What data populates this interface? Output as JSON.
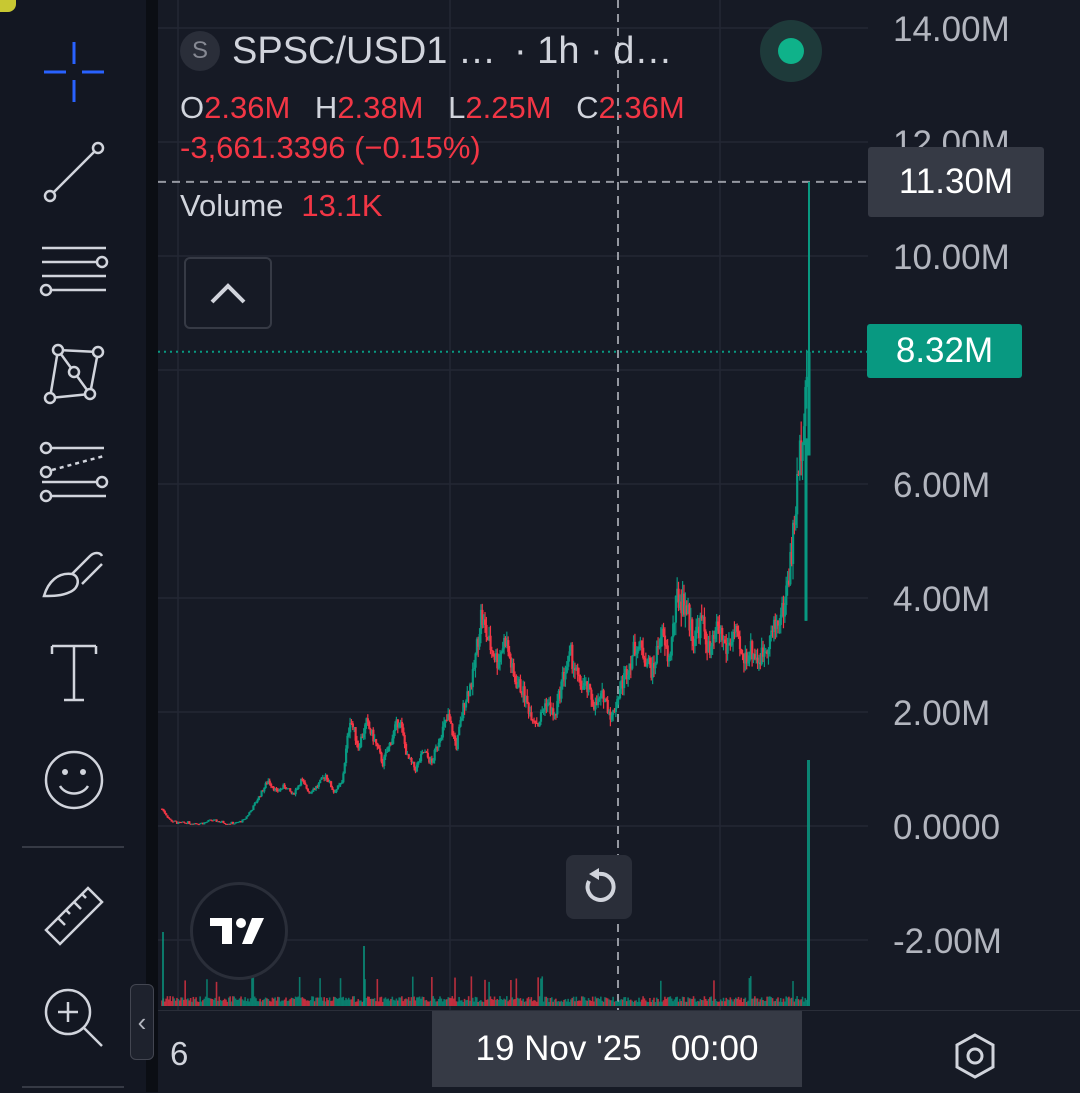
{
  "legend": {
    "symbol_icon_letter": "S",
    "symbol": "SPSC/USD1 …",
    "interval": " · 1h · d…",
    "open_key": "O",
    "open": "2.36M",
    "high_key": "H",
    "high": "2.38M",
    "low_key": "L",
    "low": "2.25M",
    "close_key": "C",
    "close": "2.36M",
    "change": "-3,661.3396 (−0.15%)",
    "volume_label": "Volume",
    "volume_value": "13.1K"
  },
  "price_axis": {
    "labels": [
      "14.00M",
      "12.00M",
      "10.00M",
      "6.00M",
      "4.00M",
      "2.00M",
      "0.0000",
      "-2.00M"
    ],
    "crosshair_price": "11.30M",
    "last_price": "8.32M"
  },
  "time_axis": {
    "left_label": "6",
    "crosshair_time": "19 Nov '25   00:00"
  },
  "toolbar": {
    "tools": [
      "crosshair-icon",
      "trend-line-icon",
      "horizontal-lines-icon",
      "pattern-icon",
      "fib-icon",
      "brush-icon",
      "text-icon",
      "emoji-icon",
      "ruler-icon",
      "zoom-in-icon"
    ]
  },
  "colors": {
    "up": "#089981",
    "down": "#f23645",
    "background": "#161a25",
    "grid": "#232734"
  },
  "chart_data": {
    "type": "candlestick",
    "ylim": [
      -2.4,
      14.4
    ],
    "y_ticks": [
      -2,
      0,
      2,
      4,
      6,
      8,
      10,
      12,
      14
    ],
    "unit": "M",
    "series": [
      {
        "values": [
          0.3,
          0.1,
          0.05,
          0.06,
          0.05,
          0.05,
          0.1,
          0.08,
          0.05,
          0.05,
          0.1,
          0.3,
          0.55,
          0.8,
          0.6,
          0.7,
          0.55,
          0.8,
          0.6,
          0.7,
          0.9,
          0.6,
          0.75,
          1.9,
          1.4,
          1.8,
          1.5,
          1.1,
          1.5,
          1.9,
          1.2,
          1.0,
          1.3,
          1.1,
          1.6,
          1.9,
          1.4,
          2.2,
          2.6,
          3.7,
          3.2,
          2.9,
          3.3,
          2.6,
          2.4,
          2.0,
          1.8,
          2.2,
          1.9,
          2.6,
          3.0,
          2.5,
          2.4,
          2.1,
          2.3,
          1.9,
          2.4,
          2.8,
          3.2,
          3.0,
          2.7,
          3.4,
          2.9,
          4.0,
          3.9,
          3.3,
          3.6,
          3.0,
          3.5,
          3.1,
          3.4,
          2.9,
          3.1,
          2.9,
          3.2,
          3.5,
          3.8,
          4.8,
          6.5,
          8.32
        ]
      }
    ]
  }
}
